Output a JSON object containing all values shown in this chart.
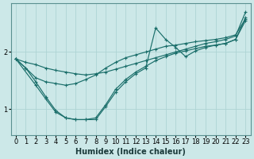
{
  "bg_color": "#cce8e8",
  "line_color": "#1a6e6a",
  "grid_color": "#aed4d4",
  "xlabel": "Humidex (Indice chaleur)",
  "xlim": [
    -0.5,
    23.5
  ],
  "ylim": [
    0.55,
    2.85
  ],
  "yticks": [
    1,
    2
  ],
  "xticks": [
    0,
    1,
    2,
    3,
    4,
    5,
    6,
    7,
    8,
    9,
    10,
    11,
    12,
    13,
    14,
    15,
    16,
    17,
    18,
    19,
    20,
    21,
    22,
    23
  ],
  "series": [
    {
      "x": [
        0,
        1,
        2,
        3,
        4,
        5,
        6,
        7,
        8,
        9,
        10,
        11,
        12,
        13,
        14,
        15,
        16,
        17,
        18,
        19,
        20,
        21,
        22,
        23
      ],
      "y": [
        1.88,
        1.82,
        1.78,
        1.72,
        1.68,
        1.65,
        1.62,
        1.6,
        1.62,
        1.65,
        1.7,
        1.75,
        1.8,
        1.85,
        1.9,
        1.95,
        2.0,
        2.05,
        2.1,
        2.15,
        2.18,
        2.22,
        2.28,
        2.7
      ]
    },
    {
      "x": [
        0,
        1,
        2,
        3,
        4,
        5,
        6,
        7,
        8,
        9,
        10,
        11,
        12,
        13,
        14,
        15,
        16,
        17,
        18,
        19,
        20,
        21,
        22,
        23
      ],
      "y": [
        1.88,
        1.72,
        1.55,
        1.48,
        1.45,
        1.42,
        1.45,
        1.52,
        1.6,
        1.72,
        1.82,
        1.9,
        1.95,
        2.0,
        2.05,
        2.1,
        2.12,
        2.15,
        2.18,
        2.2,
        2.22,
        2.25,
        2.3,
        2.58
      ]
    },
    {
      "x": [
        0,
        1,
        2,
        3,
        4,
        5,
        6,
        7,
        8,
        9,
        10,
        11,
        12,
        13,
        14,
        15,
        16,
        17,
        18,
        19,
        20,
        21,
        22,
        23
      ],
      "y": [
        1.88,
        1.72,
        1.48,
        1.22,
        0.98,
        0.85,
        0.82,
        0.82,
        0.85,
        1.08,
        1.35,
        1.52,
        1.65,
        1.75,
        1.85,
        1.92,
        1.98,
        2.02,
        2.06,
        2.1,
        2.12,
        2.15,
        2.22,
        2.55
      ]
    },
    {
      "x": [
        0,
        2,
        3,
        4,
        5,
        6,
        7,
        8,
        9,
        10,
        11,
        12,
        13,
        14,
        15,
        16,
        17,
        18,
        19,
        20,
        21,
        22,
        23
      ],
      "y": [
        1.88,
        1.42,
        1.18,
        0.95,
        0.85,
        0.82,
        0.82,
        0.82,
        1.05,
        1.3,
        1.48,
        1.62,
        1.72,
        2.42,
        2.22,
        2.08,
        1.92,
        2.02,
        2.08,
        2.12,
        2.15,
        2.22,
        2.6
      ]
    }
  ],
  "xlabel_fontsize": 7,
  "tick_fontsize": 6
}
